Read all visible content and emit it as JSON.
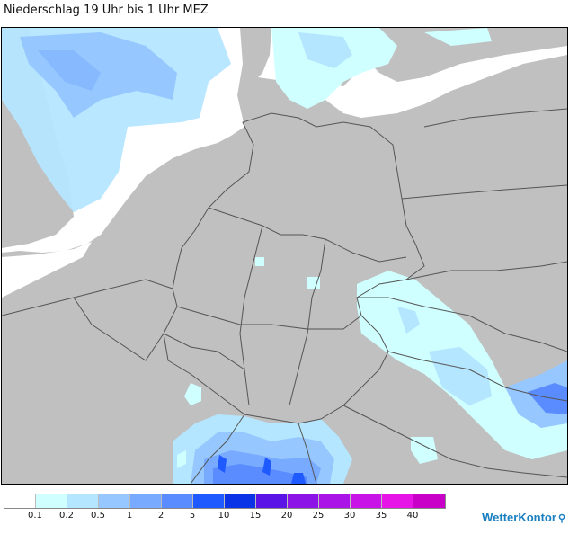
{
  "title": "Niederschlag 19 Uhr bis 1 Uhr MEZ",
  "brand": "WetterKontor",
  "legend": {
    "colors": [
      "#ffffff",
      "#cfffff",
      "#b4e6ff",
      "#96c8ff",
      "#78aaff",
      "#5a8cff",
      "#1e5aff",
      "#0a32e6",
      "#5a14e6",
      "#8c14e6",
      "#aa14e6",
      "#c814e6",
      "#e614e6",
      "#c800c8"
    ],
    "labels": [
      "0.1",
      "0.2",
      "0.5",
      "1",
      "2",
      "5",
      "10",
      "15",
      "20",
      "25",
      "30",
      "35",
      "40"
    ]
  },
  "colors": {
    "land": "#c0c0c0",
    "sea": "#ffffff",
    "border": "#555555"
  }
}
